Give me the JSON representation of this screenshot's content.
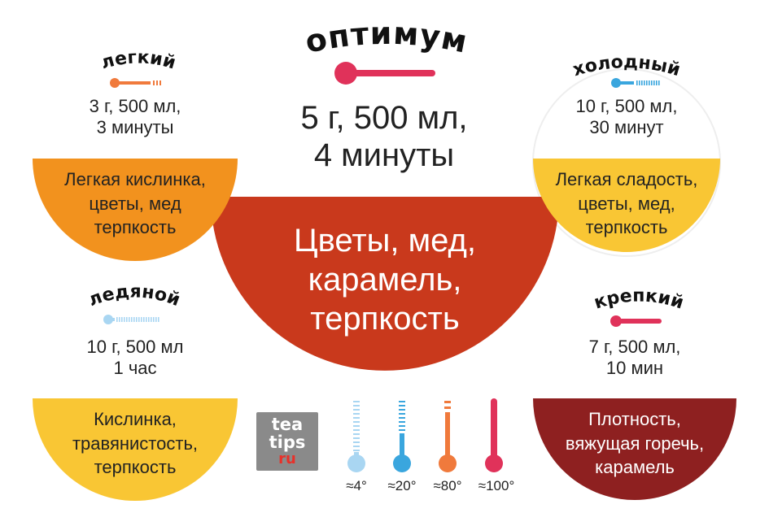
{
  "center": {
    "title": "оптимум",
    "dose": [
      "5 г, 500 мл,",
      "4 минуты"
    ],
    "flavor": [
      "Цветы, мед,",
      "карамель,",
      "терпкость"
    ]
  },
  "light": {
    "title": "легкий",
    "dose": [
      "3 г, 500 мл,",
      "3 минуты"
    ],
    "flavor": [
      "Легкая кислинка,",
      "цветы, мед",
      "терпкость"
    ]
  },
  "cold": {
    "title": "холодный",
    "dose": [
      "10 г, 500 мл,",
      "30 минут"
    ],
    "flavor": [
      "Легкая сладость,",
      "цветы, мед,",
      "терпкость"
    ]
  },
  "iced": {
    "title": "ледяной",
    "dose": [
      "10 г, 500 мл",
      "1 час"
    ],
    "flavor": [
      "Кислинка,",
      "травянистость,",
      "терпкость"
    ]
  },
  "strong": {
    "title": "крепкий",
    "dose": [
      "7 г, 500 мл,",
      "10 мин"
    ],
    "flavor": [
      "Плотность,",
      "вяжущая горечь,",
      "карамель"
    ]
  },
  "logo": {
    "line1": "tea",
    "line2": "tips",
    "line3": "ru"
  },
  "legend": [
    {
      "label": "≈4°",
      "color": "#a9d6f2",
      "icon": "thermometer-4-icon"
    },
    {
      "label": "≈20°",
      "color": "#3aa6de",
      "icon": "thermometer-20-icon"
    },
    {
      "label": "≈80°",
      "color": "#f07a3c",
      "icon": "thermometer-80-icon"
    },
    {
      "label": "≈100°",
      "color": "#e0325a",
      "icon": "thermometer-100-icon"
    }
  ],
  "colors": {
    "center_bowl": "#c9391c",
    "light_bowl": "#f2921e",
    "cold_bowl": "#f9c634",
    "iced_bowl": "#f9c634",
    "strong_bowl": "#8e2020"
  }
}
